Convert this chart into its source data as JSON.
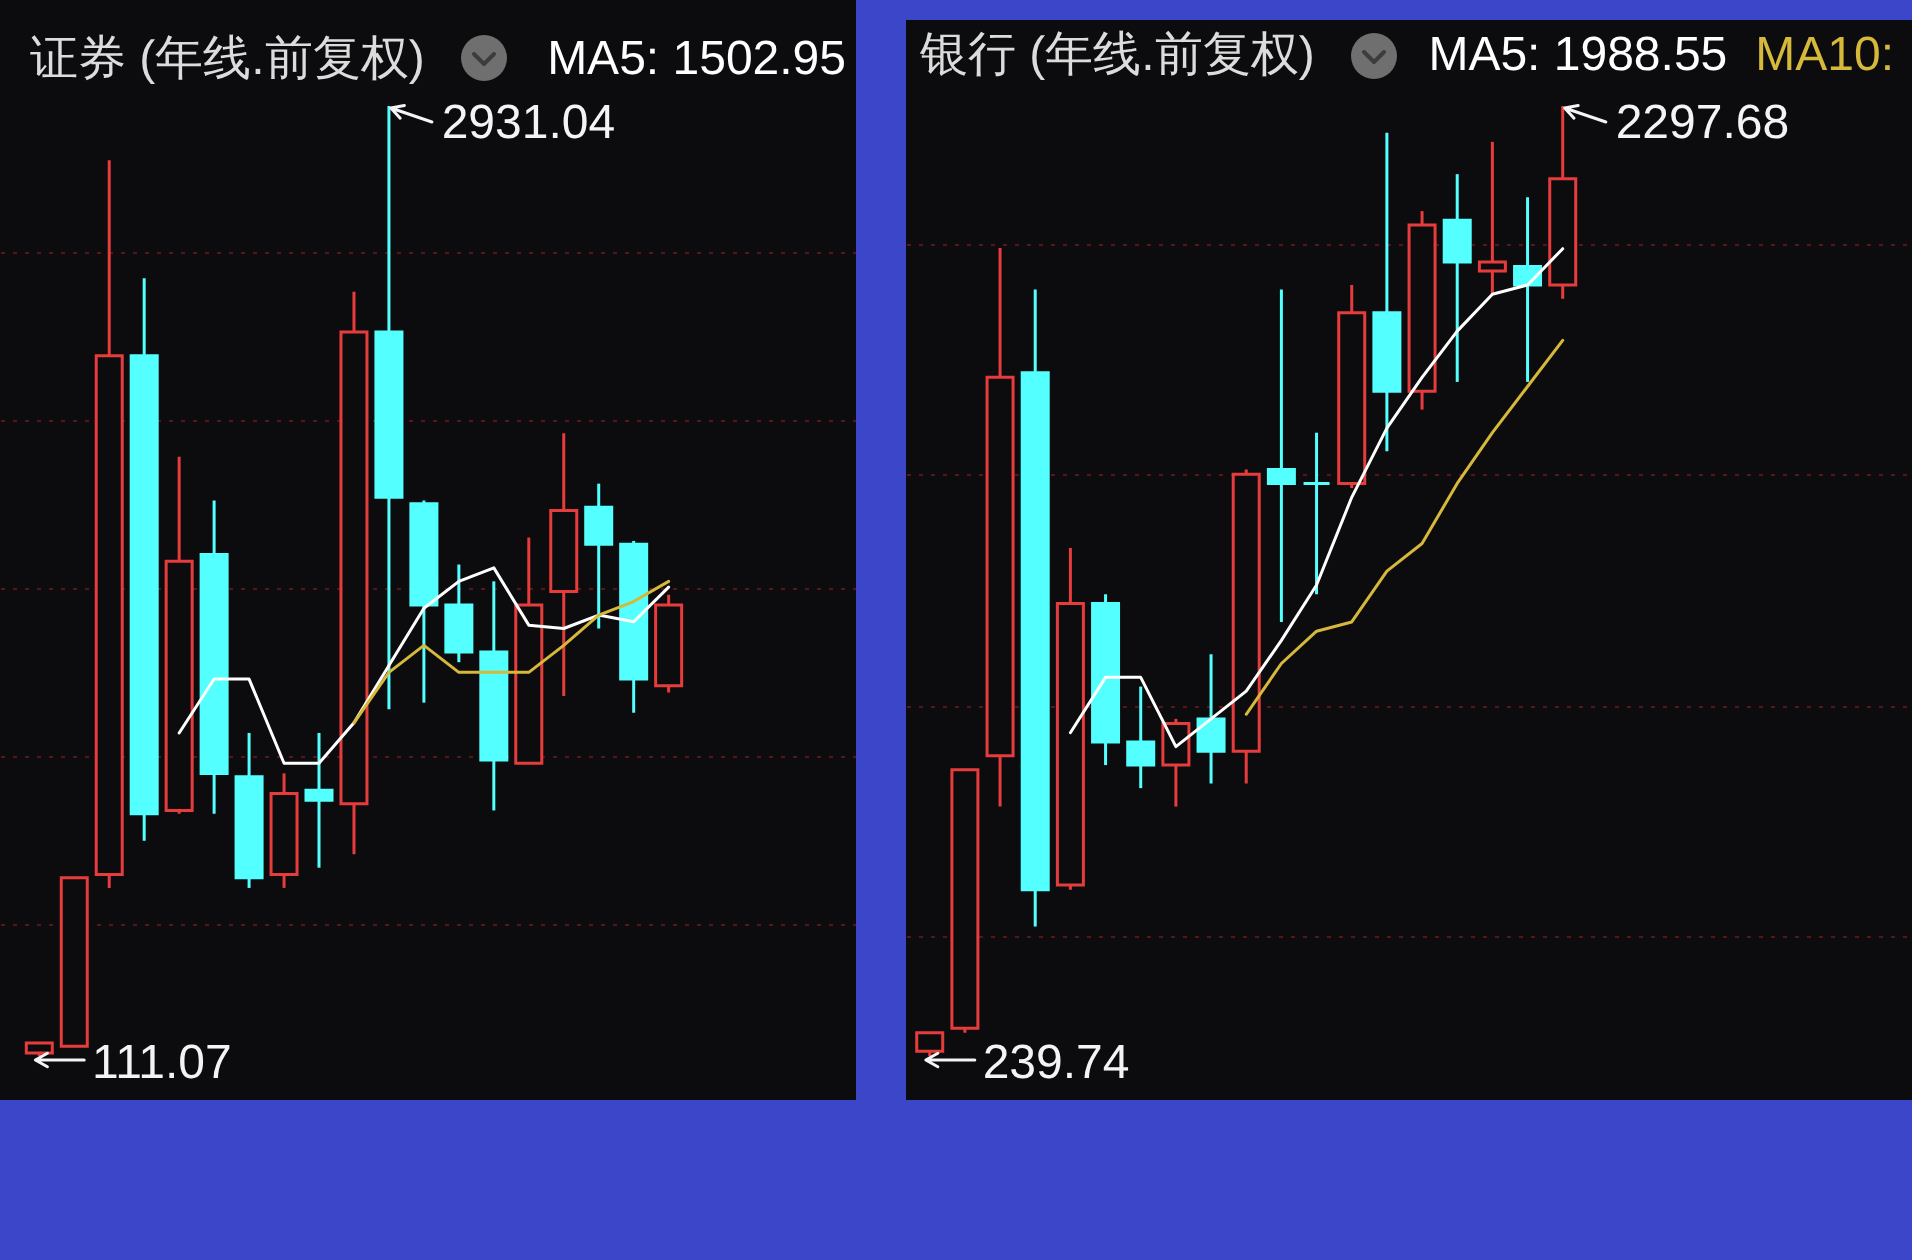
{
  "chart_data": [
    {
      "type": "candlestick",
      "title": "证券 (年线.前复权)",
      "categories": [
        null,
        null,
        null,
        null,
        null,
        null,
        null,
        null,
        null,
        null,
        null,
        null,
        null,
        null,
        null,
        null,
        null,
        null,
        null
      ],
      "ohlc": [
        [
          120,
          150,
          111.07,
          150
        ],
        [
          140,
          640,
          140,
          640
        ],
        [
          650,
          2770,
          610,
          2190
        ],
        [
          2190,
          2420,
          750,
          830
        ],
        [
          840,
          1890,
          830,
          1580
        ],
        [
          1600,
          1760,
          830,
          950
        ],
        [
          940,
          1070,
          610,
          640
        ],
        [
          650,
          950,
          610,
          890
        ],
        [
          900,
          1070,
          670,
          870
        ],
        [
          860,
          2380,
          710,
          2260
        ],
        [
          2260,
          2931.04,
          1140,
          1770
        ],
        [
          1750,
          1760,
          1160,
          1450
        ],
        [
          1450,
          1570,
          1280,
          1310
        ],
        [
          1310,
          1520,
          840,
          990
        ],
        [
          980,
          1650,
          980,
          1450
        ],
        [
          1490,
          1960,
          1180,
          1730
        ],
        [
          1740,
          1810,
          1380,
          1630
        ],
        [
          1630,
          1640,
          1130,
          1230
        ],
        [
          1210,
          1480,
          1190,
          1450
        ]
      ],
      "colors": [
        "#e63c3c",
        "#e63c3c",
        "#e63c3c",
        "#54ffff",
        "#e63c3c",
        "#54ffff",
        "#54ffff",
        "#e63c3c",
        "#54ffff",
        "#e63c3c",
        "#54ffff",
        "#54ffff",
        "#54ffff",
        "#54ffff",
        "#e63c3c",
        "#e63c3c",
        "#54ffff",
        "#54ffff",
        "#e63c3c"
      ],
      "series": [
        {
          "name": "MA5: 1502.95",
          "type": "line",
          "color": "#ffffff",
          "values": [
            null,
            null,
            null,
            null,
            1070,
            1230,
            1230,
            980,
            980,
            1100,
            1270,
            1440,
            1520,
            1560,
            1390,
            1380,
            1420,
            1400,
            1502.95
          ]
        },
        {
          "type": "line",
          "color": "#d6b83a",
          "values": [
            null,
            null,
            null,
            null,
            null,
            null,
            null,
            null,
            null,
            1100,
            1250,
            1330,
            1250,
            1250,
            1250,
            1330,
            1420,
            1460,
            1520
          ]
        }
      ],
      "yticks": [
        {
          "value": 500,
          "label": null
        },
        {
          "value": 1000,
          "label": null
        },
        {
          "value": 1500,
          "label": null
        },
        {
          "value": 2000,
          "label": null
        },
        {
          "value": 2500,
          "label": null
        }
      ],
      "grid": "y",
      "tick_labels": false,
      "legend": "top right",
      "annotations": [
        "2931.04",
        "111.07"
      ]
    },
    {
      "type": "candlestick",
      "title": "银行 (年线.前复权)",
      "categories": [
        null,
        null,
        null,
        null,
        null,
        null,
        null,
        null,
        null,
        null,
        null,
        null,
        null,
        null,
        null,
        null,
        null,
        null,
        null
      ],
      "ohlc": [
        [
          250,
          290,
          239.74,
          290
        ],
        [
          300,
          860,
          290,
          860
        ],
        [
          890,
          1990,
          780,
          1710
        ],
        [
          1720,
          1900,
          520,
          600
        ],
        [
          610,
          1340,
          600,
          1220
        ],
        [
          1220,
          1240,
          870,
          920
        ],
        [
          920,
          1040,
          820,
          870
        ],
        [
          870,
          970,
          780,
          960
        ],
        [
          970,
          1110,
          830,
          900
        ],
        [
          900,
          1510,
          830,
          1500
        ],
        [
          1510,
          1900,
          1180,
          1480
        ],
        [
          1480,
          1590,
          1240,
          1480
        ],
        [
          1480,
          1910,
          1470,
          1850
        ],
        [
          1850,
          2240,
          1550,
          1680
        ],
        [
          1680,
          2070,
          1640,
          2040
        ],
        [
          2050,
          2150,
          1700,
          1960
        ],
        [
          1940,
          2220,
          1890,
          1960
        ],
        [
          1950,
          2100,
          1700,
          1910
        ],
        [
          1910,
          2297.68,
          1880,
          2140
        ]
      ],
      "colors": [
        "#e63c3c",
        "#e63c3c",
        "#e63c3c",
        "#54ffff",
        "#e63c3c",
        "#54ffff",
        "#54ffff",
        "#e63c3c",
        "#54ffff",
        "#e63c3c",
        "#54ffff",
        "#54ffff",
        "#e63c3c",
        "#54ffff",
        "#e63c3c",
        "#54ffff",
        "#e63c3c",
        "#54ffff",
        "#e63c3c"
      ],
      "series": [
        {
          "name": "MA5: 1988.55",
          "type": "line",
          "color": "#ffffff",
          "values": [
            null,
            null,
            null,
            null,
            940,
            1060,
            1060,
            910,
            970,
            1030,
            1140,
            1260,
            1450,
            1600,
            1710,
            1810,
            1890,
            1910,
            1988.55
          ]
        },
        {
          "name": "MA10:",
          "type": "line",
          "color": "#d6b83a",
          "values": [
            null,
            null,
            null,
            null,
            null,
            null,
            null,
            null,
            null,
            980,
            1090,
            1160,
            1180,
            1290,
            1350,
            1480,
            1590,
            1690,
            1790
          ]
        }
      ],
      "yticks": [
        {
          "value": 500,
          "label": null
        },
        {
          "value": 1000,
          "label": null
        },
        {
          "value": 1500,
          "label": null
        },
        {
          "value": 2000,
          "label": null
        }
      ],
      "grid": "y",
      "tick_labels": false,
      "legend": "top right",
      "annotations": [
        "2297.68",
        "239.74"
      ]
    }
  ]
}
